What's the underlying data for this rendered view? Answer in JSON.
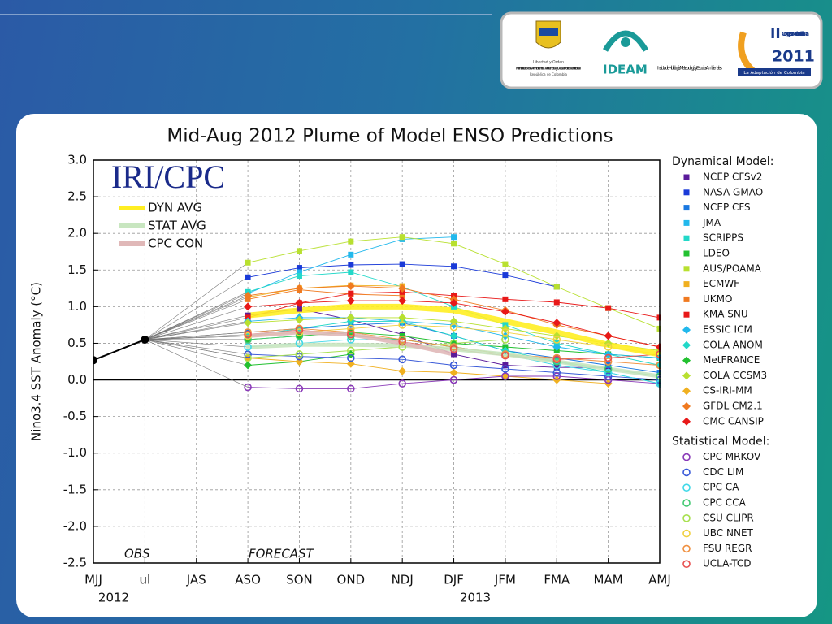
{
  "header": {
    "ministry": {
      "motto": "Libertad y Orden",
      "name": "Ministerio de Ambiente, Vivienda y Desarrollo Territorial",
      "country": "República de Colombia"
    },
    "ideam": {
      "acronym": "IDEAM",
      "name": "Instituto de Hidrología, Meteorología y Estudios Ambientales"
    },
    "congress": {
      "number": "II",
      "name": "Congreso Nacional del Clima",
      "year": "2011",
      "slogan": "La Adaptación de Colombia"
    }
  },
  "chart_data": {
    "type": "line",
    "title": "Mid-Aug 2012 Plume of Model ENSO Predictions",
    "watermark": "IRI/CPC",
    "y_label": "Nino3.4 SST Anomaly (°C)",
    "annotations": [
      "OBS",
      "FORECAST"
    ],
    "categories": [
      "MJJ",
      "ul",
      "JAS",
      "ASO",
      "SON",
      "OND",
      "NDJ",
      "DJF",
      "JFM",
      "FMA",
      "MAM",
      "AMJ"
    ],
    "years": [
      "2012",
      "2013"
    ],
    "ylim": [
      -2.5,
      3
    ],
    "yticks": [
      {
        "value": 3,
        "label": "3.0"
      },
      2.5,
      {
        "value": 2,
        "label": "2.0"
      },
      1.5,
      {
        "value": 1,
        "label": "1.0"
      },
      0.5,
      {
        "value": 0,
        "label": "0.0"
      },
      -0.5,
      {
        "value": -1,
        "label": "-1.0"
      },
      -1.5,
      {
        "value": -2,
        "label": "-2.0"
      },
      -2.5
    ],
    "grid": true,
    "observed": {
      "color": "#000000",
      "values": [
        0.27,
        0.55,
        null,
        null,
        null,
        null,
        null,
        null,
        null,
        null,
        null,
        null
      ]
    },
    "averages": [
      {
        "name": "DYN AVG",
        "color": "#ffee22",
        "values": [
          null,
          null,
          null,
          0.88,
          0.95,
          1.0,
          1.0,
          0.95,
          0.8,
          0.65,
          0.48,
          0.35
        ]
      },
      {
        "name": "STAT AVG",
        "color": "#c8e6c0",
        "values": [
          null,
          null,
          null,
          0.45,
          0.48,
          0.48,
          0.47,
          0.42,
          0.35,
          0.25,
          0.15,
          0.05
        ]
      },
      {
        "name": "CPC CON",
        "color": "#e0b8b8",
        "values": [
          null,
          null,
          null,
          0.6,
          0.65,
          0.62,
          0.5,
          0.35,
          null,
          null,
          null,
          null
        ]
      }
    ],
    "dynamical": {
      "title": "Dynamical Model:",
      "series": [
        {
          "name": "NCEP CFSv2",
          "color": "#5a1a9a",
          "marker": "square",
          "values": [
            null,
            null,
            null,
            0.88,
            0.97,
            0.82,
            0.62,
            0.35,
            0.2,
            0.17,
            0.17,
            null
          ]
        },
        {
          "name": "NASA GMAO",
          "color": "#1a3ad8",
          "marker": "square",
          "values": [
            null,
            null,
            null,
            1.4,
            1.53,
            1.57,
            1.58,
            1.55,
            1.43,
            1.27,
            null,
            null
          ]
        },
        {
          "name": "NCEP CFS",
          "color": "#1a78e0",
          "marker": "square",
          "values": [
            null,
            null,
            null,
            0.65,
            0.7,
            0.75,
            0.78,
            0.6,
            0.4,
            0.3,
            0.2,
            0.1
          ]
        },
        {
          "name": "JMA",
          "color": "#22b8ec",
          "marker": "square",
          "values": [
            null,
            null,
            null,
            1.18,
            1.47,
            1.71,
            1.92,
            1.95,
            null,
            null,
            null,
            null
          ]
        },
        {
          "name": "SCRIPPS",
          "color": "#22d8c8",
          "marker": "square",
          "values": [
            null,
            null,
            null,
            1.2,
            1.42,
            1.47,
            1.27,
            1.0,
            0.75,
            0.5,
            0.35,
            0.2
          ]
        },
        {
          "name": "LDEO",
          "color": "#22c030",
          "marker": "square",
          "values": [
            null,
            null,
            null,
            0.55,
            0.6,
            0.65,
            0.6,
            0.5,
            0.45,
            0.4,
            0.35,
            0.3
          ]
        },
        {
          "name": "AUS/POAMA",
          "color": "#b8e030",
          "marker": "square",
          "values": [
            null,
            null,
            null,
            1.6,
            1.76,
            1.89,
            1.95,
            1.86,
            1.58,
            1.27,
            0.98,
            0.7
          ]
        },
        {
          "name": "ECMWF",
          "color": "#f0b020",
          "marker": "square",
          "values": [
            null,
            null,
            null,
            1.13,
            1.25,
            1.29,
            1.28,
            null,
            null,
            null,
            null,
            null
          ]
        },
        {
          "name": "UKMO",
          "color": "#f07a20",
          "marker": "square",
          "values": [
            null,
            null,
            null,
            1.1,
            1.23,
            1.17,
            1.15,
            null,
            null,
            null,
            null,
            null
          ]
        },
        {
          "name": "KMA SNU",
          "color": "#e81818",
          "marker": "square",
          "values": [
            null,
            null,
            null,
            0.85,
            1.05,
            1.18,
            1.2,
            1.15,
            1.1,
            1.06,
            0.98,
            0.85
          ]
        },
        {
          "name": "ESSIC ICM",
          "color": "#22b8ec",
          "marker": "diamond",
          "values": [
            null,
            null,
            null,
            0.8,
            0.85,
            0.85,
            0.8,
            0.75,
            0.6,
            0.45,
            0.35,
            0.3
          ]
        },
        {
          "name": "COLA ANOM",
          "color": "#22d8c8",
          "marker": "diamond",
          "values": [
            null,
            null,
            null,
            0.6,
            0.7,
            0.8,
            0.8,
            0.6,
            0.4,
            0.25,
            0.1,
            -0.05
          ]
        },
        {
          "name": "MetFRANCE",
          "color": "#22c030",
          "marker": "diamond",
          "values": [
            null,
            null,
            null,
            0.2,
            0.25,
            0.35,
            null,
            null,
            null,
            null,
            null,
            null
          ]
        },
        {
          "name": "COLA CCSM3",
          "color": "#b8e030",
          "marker": "diamond",
          "values": [
            null,
            null,
            null,
            0.78,
            0.82,
            0.85,
            0.85,
            0.8,
            0.7,
            0.6,
            0.5,
            0.4
          ]
        },
        {
          "name": "CS-IRI-MM",
          "color": "#f0b020",
          "marker": "diamond",
          "values": [
            null,
            null,
            null,
            0.3,
            0.25,
            0.22,
            0.12,
            0.1,
            0.05,
            0.0,
            -0.05,
            null
          ]
        },
        {
          "name": "GFDL CM2.1",
          "color": "#f07a20",
          "marker": "diamond",
          "values": [
            null,
            null,
            null,
            1.15,
            1.25,
            1.28,
            1.25,
            1.1,
            0.95,
            0.75,
            0.6,
            0.45
          ]
        },
        {
          "name": "CMC CANSIP",
          "color": "#e81818",
          "marker": "diamond",
          "values": [
            null,
            null,
            null,
            1.0,
            1.05,
            1.08,
            1.08,
            1.05,
            0.93,
            0.78,
            0.6,
            0.45
          ]
        }
      ]
    },
    "statistical": {
      "title": "Statistical Model:",
      "series": [
        {
          "name": "CPC MRKOV",
          "color": "#8a3ab8",
          "marker": "circle",
          "values": [
            null,
            null,
            null,
            -0.1,
            -0.12,
            -0.12,
            -0.05,
            0.0,
            0.05,
            0.05,
            0.0,
            -0.05
          ]
        },
        {
          "name": "CDC LIM",
          "color": "#3a5ad8",
          "marker": "circle",
          "values": [
            null,
            null,
            null,
            0.35,
            0.32,
            0.3,
            0.28,
            0.2,
            0.15,
            0.1,
            0.05,
            0.0
          ]
        },
        {
          "name": "CPC CA",
          "color": "#40d8e8",
          "marker": "circle",
          "values": [
            null,
            null,
            null,
            0.45,
            0.5,
            0.55,
            0.55,
            0.45,
            0.35,
            0.2,
            0.1,
            -0.05
          ]
        },
        {
          "name": "CPC CCA",
          "color": "#40c870",
          "marker": "circle",
          "values": [
            null,
            null,
            null,
            0.55,
            0.6,
            0.6,
            0.55,
            0.45,
            0.35,
            0.25,
            0.15,
            0.05
          ]
        },
        {
          "name": "CSU CLIPR",
          "color": "#a8e050",
          "marker": "circle",
          "values": [
            null,
            null,
            null,
            0.3,
            0.35,
            0.4,
            0.45,
            0.5,
            0.55,
            null,
            null,
            null
          ]
        },
        {
          "name": "UBC NNET",
          "color": "#f0d040",
          "marker": "circle",
          "values": [
            null,
            null,
            null,
            0.6,
            0.65,
            0.7,
            0.75,
            0.72,
            0.65,
            0.55,
            0.45,
            0.35
          ]
        },
        {
          "name": "FSU REGR",
          "color": "#f09040",
          "marker": "circle",
          "values": [
            null,
            null,
            null,
            0.65,
            0.7,
            0.65,
            0.55,
            0.45,
            0.35,
            0.3,
            0.25,
            0.2
          ]
        },
        {
          "name": "UCLA-TCD",
          "color": "#e85050",
          "marker": "circle",
          "values": [
            null,
            null,
            null,
            0.62,
            0.68,
            0.62,
            0.52,
            0.42,
            0.33,
            0.28,
            0.3,
            0.35
          ]
        }
      ]
    }
  }
}
